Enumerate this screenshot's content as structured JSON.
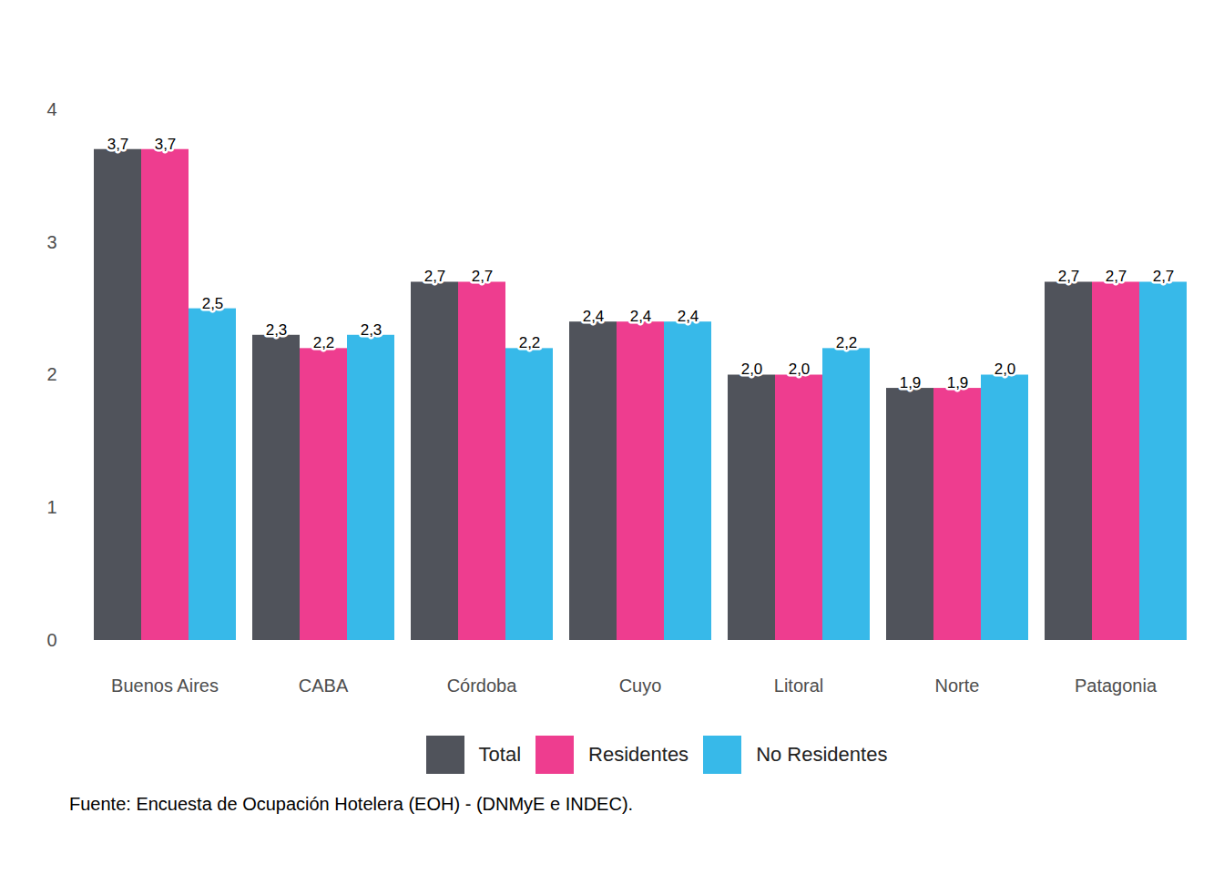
{
  "chart_data": {
    "type": "bar",
    "categories": [
      "Buenos Aires",
      "CABA",
      "Córdoba",
      "Cuyo",
      "Litoral",
      "Norte",
      "Patagonia"
    ],
    "series": [
      {
        "name": "Total",
        "color": "#50535b",
        "values": [
          3.7,
          2.3,
          2.7,
          2.4,
          2.0,
          1.9,
          2.7
        ],
        "value_labels": [
          "3,7",
          "2,3",
          "2,7",
          "2,4",
          "2,0",
          "1,9",
          "2,7"
        ]
      },
      {
        "name": "Residentes",
        "color": "#ee3d8f",
        "values": [
          3.7,
          2.2,
          2.7,
          2.4,
          2.0,
          1.9,
          2.7
        ],
        "value_labels": [
          "3,7",
          "2,2",
          "2,7",
          "2,4",
          "2,0",
          "1,9",
          "2,7"
        ]
      },
      {
        "name": "No Residentes",
        "color": "#37b9e9",
        "values": [
          2.5,
          2.3,
          2.2,
          2.4,
          2.2,
          2.0,
          2.7
        ],
        "value_labels": [
          "2,5",
          "2,3",
          "2,2",
          "2,4",
          "2,2",
          "2,0",
          "2,7"
        ]
      }
    ],
    "ylim": [
      0,
      4
    ],
    "yticks": [
      0,
      1,
      2,
      3,
      4
    ],
    "grid": false,
    "data_labels": true,
    "legend": "bottom",
    "caption": "Fuente: Encuesta de Ocupación Hotelera (EOH) - (DNMyE e INDEC)."
  }
}
